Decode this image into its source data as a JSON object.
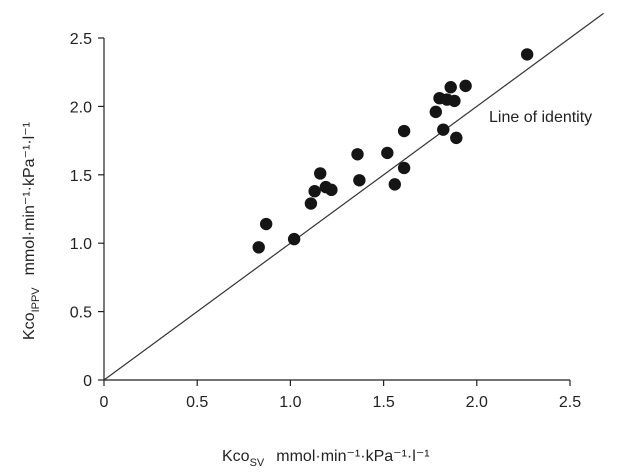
{
  "chart_data": {
    "type": "scatter",
    "title": "",
    "xlabel": {
      "main": "Kco",
      "sub": "SV",
      "units": "mmol·min⁻¹·kPa⁻¹·l⁻¹"
    },
    "ylabel": {
      "main": "Kco",
      "sub": "IPPV",
      "units": "mmol·min⁻¹·kPa⁻¹·l⁻¹"
    },
    "xlim": [
      0,
      2.5
    ],
    "ylim": [
      0,
      2.5
    ],
    "xticks": [
      "0",
      "0.5",
      "1.0",
      "1.5",
      "2.0",
      "2.5"
    ],
    "yticks": [
      "0",
      "0.5",
      "1.0",
      "1.5",
      "2.0",
      "2.5"
    ],
    "grid": false,
    "reference_line": {
      "label": "Line of identity",
      "slope": 1,
      "intercept": 0
    },
    "points": [
      {
        "x": 0.83,
        "y": 0.97
      },
      {
        "x": 0.87,
        "y": 1.14
      },
      {
        "x": 1.02,
        "y": 1.03
      },
      {
        "x": 1.11,
        "y": 1.29
      },
      {
        "x": 1.13,
        "y": 1.38
      },
      {
        "x": 1.16,
        "y": 1.51
      },
      {
        "x": 1.19,
        "y": 1.41
      },
      {
        "x": 1.22,
        "y": 1.39
      },
      {
        "x": 1.36,
        "y": 1.65
      },
      {
        "x": 1.37,
        "y": 1.46
      },
      {
        "x": 1.52,
        "y": 1.66
      },
      {
        "x": 1.56,
        "y": 1.43
      },
      {
        "x": 1.61,
        "y": 1.82
      },
      {
        "x": 1.61,
        "y": 1.55
      },
      {
        "x": 1.78,
        "y": 1.96
      },
      {
        "x": 1.8,
        "y": 2.06
      },
      {
        "x": 1.82,
        "y": 1.83
      },
      {
        "x": 1.84,
        "y": 2.05
      },
      {
        "x": 1.86,
        "y": 2.14
      },
      {
        "x": 1.88,
        "y": 2.04
      },
      {
        "x": 1.89,
        "y": 1.77
      },
      {
        "x": 1.94,
        "y": 2.15
      },
      {
        "x": 2.27,
        "y": 2.38
      }
    ]
  }
}
